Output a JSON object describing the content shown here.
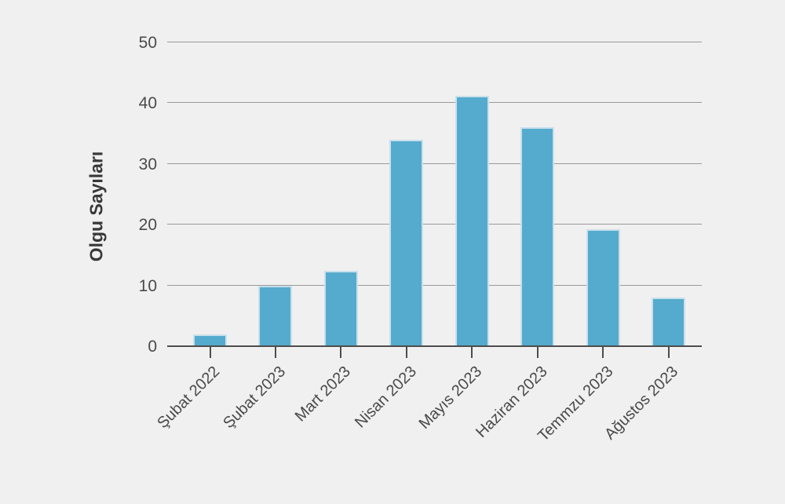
{
  "chart_data": {
    "type": "bar",
    "title": "",
    "categories": [
      "Şubat 2022",
      "Şubat 2023",
      "Mart 2023",
      "Nisan 2023",
      "Mayıs 2023",
      "Haziran 2023",
      "Temmzu 2023",
      "Ağustos 2023"
    ],
    "values": [
      2,
      10,
      12.4,
      34,
      41.2,
      36,
      19.2,
      8
    ],
    "xlabel": "",
    "ylabel": "Olgu Sayıları",
    "ylim": [
      0,
      50
    ],
    "yticks": [
      0,
      10,
      20,
      30,
      40,
      50
    ],
    "grid": true,
    "legend": "none",
    "x_tick_rotation_deg": 45,
    "colors": {
      "background": "#f0f0f0",
      "bar_fill": "#55abcd",
      "bar_edge": "#c9e0ec",
      "gridline": "#9a9a9a",
      "axis_line": "#4d4d4d",
      "tick_mark": "#4d4d4d",
      "tick_label_text": "#4a4a4a",
      "axis_title_text": "#383838"
    }
  }
}
